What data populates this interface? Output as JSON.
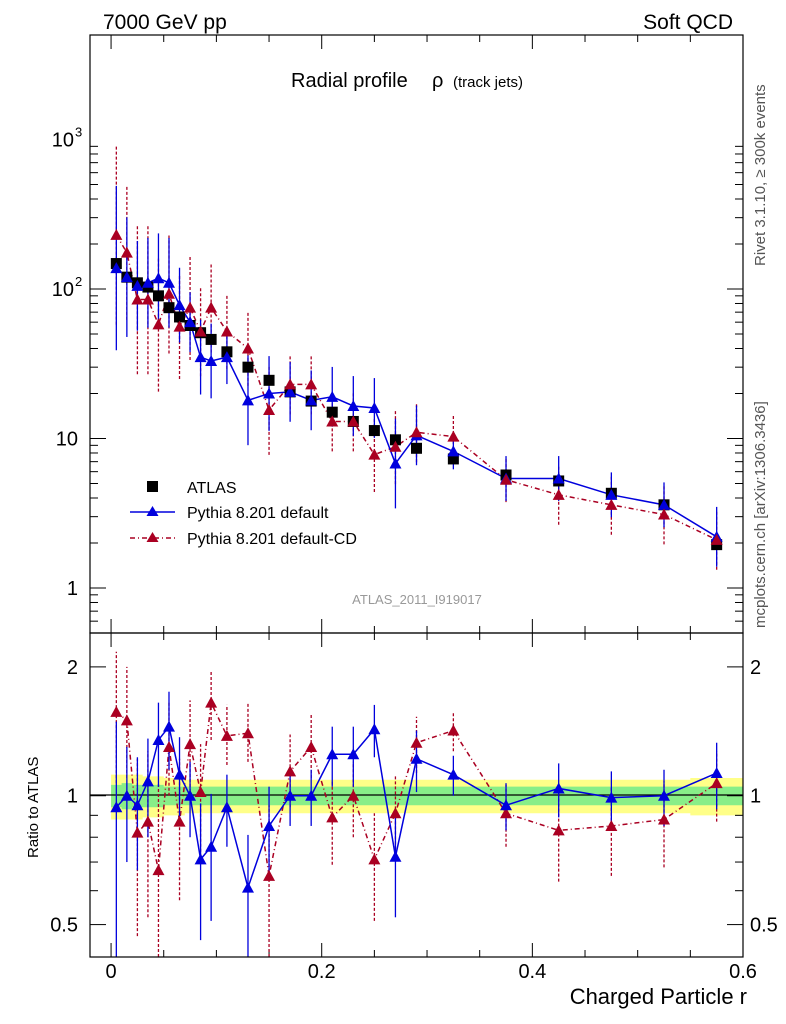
{
  "header": {
    "left": "7000 GeV pp",
    "right": "Soft QCD",
    "side_top": "Rivet 3.1.10, ≥ 300k events",
    "side_bottom": "mcplots.cern.ch [arXiv:1306.3436]"
  },
  "chart_data": [
    {
      "type": "scatter",
      "panel": "main",
      "title": "Radial profile",
      "title_symbol": "ρ",
      "title_suffix": "(track jets)",
      "analysis_id": "ATLAS_2011_I919017",
      "yscale": "log",
      "ylim": [
        0.5,
        5000
      ],
      "xlim": [
        -0.02,
        0.6
      ],
      "y_ticklabels": [
        "1",
        "10",
        "10²",
        "10³"
      ],
      "legend_position": "lower-left",
      "x": [
        0.005,
        0.015,
        0.025,
        0.035,
        0.045,
        0.055,
        0.065,
        0.075,
        0.085,
        0.095,
        0.11,
        0.13,
        0.15,
        0.17,
        0.19,
        0.21,
        0.23,
        0.25,
        0.27,
        0.29,
        0.325,
        0.375,
        0.425,
        0.475,
        0.525,
        0.575
      ],
      "series": [
        {
          "name": "ATLAS",
          "color": "#000000",
          "marker": "square",
          "values": [
            148,
            120,
            110,
            103,
            90,
            75,
            65,
            57,
            51,
            46,
            38,
            30,
            24.5,
            20.5,
            17.8,
            15,
            13,
            11.3,
            9.8,
            8.6,
            7.3,
            5.7,
            5.2,
            4.3,
            3.6,
            1.95
          ]
        },
        {
          "name": "Pythia 8.201 default",
          "color": "#0000dd",
          "marker": "triangle",
          "values": [
            138,
            120,
            105,
            110,
            118,
            110,
            78,
            60,
            35,
            33,
            35,
            18,
            20,
            20.5,
            18,
            19,
            16.5,
            16,
            6.8,
            10.5,
            8.2,
            5.4,
            5.4,
            4.2,
            3.6,
            2.2
          ],
          "err": [
            0.55,
            0.4,
            0.3,
            0.3,
            0.3,
            0.3,
            0.25,
            0.2,
            0.25,
            0.25,
            0.18,
            0.3,
            0.25,
            0.2,
            0.2,
            0.2,
            0.2,
            0.2,
            0.3,
            0.2,
            0.12,
            0.15,
            0.15,
            0.15,
            0.15,
            0.2
          ]
        },
        {
          "name": "Pythia 8.201 default-CD",
          "color": "#aa0022",
          "marker": "triangle",
          "values": [
            230,
            175,
            85,
            85,
            58,
            93,
            56,
            75,
            52,
            75,
            52,
            40,
            15.5,
            23,
            23,
            13,
            13,
            7.8,
            8.8,
            11,
            10.3,
            5.3,
            4.2,
            3.6,
            3.1,
            2.1
          ],
          "err": [
            0.6,
            0.45,
            0.5,
            0.5,
            0.45,
            0.4,
            0.35,
            0.35,
            0.3,
            0.3,
            0.25,
            0.25,
            0.3,
            0.2,
            0.2,
            0.2,
            0.2,
            0.25,
            0.25,
            0.2,
            0.15,
            0.15,
            0.2,
            0.2,
            0.2,
            0.2
          ]
        }
      ]
    },
    {
      "type": "scatter",
      "panel": "ratio",
      "ylabel": "Ratio to ATLAS",
      "xlabel": "Charged Particle r",
      "yscale": "log",
      "ylim": [
        0.42,
        2.4
      ],
      "xlim": [
        -0.02,
        0.6
      ],
      "y_ticklabels": [
        "0.5",
        "1",
        "2"
      ],
      "x_ticklabels": [
        "0",
        "0.2",
        "0.4",
        "0.6"
      ],
      "x": [
        0.005,
        0.015,
        0.025,
        0.035,
        0.045,
        0.055,
        0.065,
        0.075,
        0.085,
        0.095,
        0.11,
        0.13,
        0.15,
        0.17,
        0.19,
        0.21,
        0.23,
        0.25,
        0.27,
        0.29,
        0.325,
        0.375,
        0.425,
        0.475,
        0.525,
        0.575
      ],
      "band_inner": [
        0.06,
        0.07,
        0.06,
        0.06,
        0.06,
        0.05,
        0.05,
        0.05,
        0.05,
        0.05,
        0.05,
        0.05,
        0.05,
        0.05,
        0.05,
        0.05,
        0.05,
        0.05,
        0.05,
        0.05,
        0.05,
        0.05,
        0.05,
        0.05,
        0.05,
        0.05
      ],
      "band_outer": [
        0.12,
        0.12,
        0.12,
        0.11,
        0.11,
        0.1,
        0.1,
        0.09,
        0.09,
        0.09,
        0.09,
        0.09,
        0.09,
        0.09,
        0.09,
        0.09,
        0.09,
        0.09,
        0.09,
        0.09,
        0.09,
        0.09,
        0.09,
        0.09,
        0.09,
        0.1
      ],
      "series": [
        {
          "name": "Pythia 8.201 default",
          "color": "#0000dd",
          "values": [
            0.94,
            1.0,
            0.95,
            1.08,
            1.35,
            1.45,
            1.12,
            1.0,
            0.71,
            0.76,
            0.94,
            0.61,
            0.85,
            1.0,
            1.0,
            1.25,
            1.25,
            1.43,
            0.72,
            1.22,
            1.12,
            0.95,
            1.04,
            0.99,
            1.0,
            1.13
          ],
          "err_lo": [
            0.55,
            0.3,
            0.28,
            0.28,
            0.3,
            0.3,
            0.25,
            0.2,
            0.25,
            0.25,
            0.18,
            0.2,
            0.2,
            0.15,
            0.15,
            0.2,
            0.2,
            0.2,
            0.2,
            0.2,
            0.12,
            0.12,
            0.15,
            0.15,
            0.15,
            0.2
          ],
          "err_hi": [
            0.55,
            0.3,
            0.28,
            0.28,
            0.3,
            0.3,
            0.25,
            0.2,
            0.25,
            0.25,
            0.18,
            0.2,
            0.2,
            0.15,
            0.15,
            0.2,
            0.2,
            0.2,
            0.2,
            0.2,
            0.12,
            0.12,
            0.15,
            0.15,
            0.15,
            0.2
          ]
        },
        {
          "name": "Pythia 8.201 default-CD",
          "color": "#aa0022",
          "values": [
            1.57,
            1.5,
            0.82,
            0.87,
            0.67,
            1.3,
            0.87,
            1.32,
            1.02,
            1.65,
            1.38,
            1.4,
            0.65,
            1.14,
            1.3,
            0.89,
            1.0,
            0.71,
            0.91,
            1.33,
            1.42,
            0.91,
            0.83,
            0.85,
            0.88,
            1.07
          ],
          "err_lo": [
            0.5,
            0.4,
            0.35,
            0.35,
            0.35,
            0.3,
            0.3,
            0.3,
            0.3,
            0.3,
            0.2,
            0.2,
            0.25,
            0.2,
            0.2,
            0.2,
            0.2,
            0.2,
            0.2,
            0.2,
            0.15,
            0.15,
            0.2,
            0.2,
            0.2,
            0.2
          ],
          "err_hi": [
            0.6,
            0.5,
            0.4,
            0.4,
            0.4,
            0.35,
            0.35,
            0.35,
            0.3,
            0.3,
            0.25,
            0.25,
            0.3,
            0.25,
            0.25,
            0.2,
            0.2,
            0.2,
            0.2,
            0.2,
            0.15,
            0.15,
            0.2,
            0.2,
            0.2,
            0.2
          ]
        }
      ]
    }
  ]
}
